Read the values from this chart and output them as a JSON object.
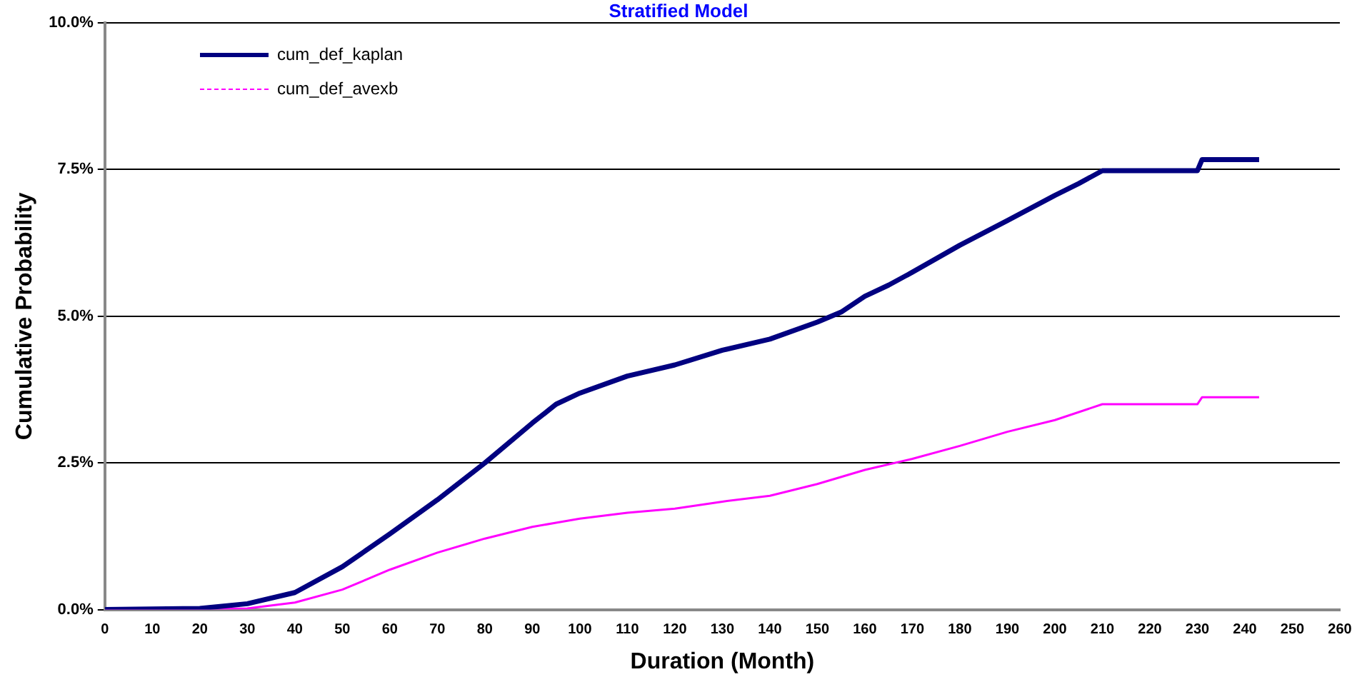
{
  "chart_data": {
    "type": "line",
    "title": "Stratified Model",
    "xlabel": "Duration (Month)",
    "ylabel": "Cumulative Probability",
    "xlim": [
      0,
      260
    ],
    "xticks": [
      0,
      10,
      20,
      30,
      40,
      50,
      60,
      70,
      80,
      90,
      100,
      110,
      120,
      130,
      140,
      150,
      160,
      170,
      180,
      190,
      200,
      210,
      220,
      230,
      240,
      250,
      260
    ],
    "ylim": [
      0,
      10
    ],
    "yticks": [
      {
        "value": 0,
        "label": "0.0%"
      },
      {
        "value": 2.5,
        "label": "2.5%"
      },
      {
        "value": 5,
        "label": "5.0%"
      },
      {
        "value": 7.5,
        "label": "7.5%"
      },
      {
        "value": 10,
        "label": "10.0%"
      }
    ],
    "grid": "y",
    "legend": "top left",
    "marker": "none",
    "series": [
      {
        "name": "cum_def_kaplan",
        "color": "#000080",
        "x": [
          0,
          20,
          30,
          40,
          50,
          60,
          70,
          80,
          90,
          95,
          100,
          110,
          120,
          130,
          140,
          150,
          155,
          160,
          165,
          170,
          180,
          190,
          200,
          205,
          210,
          230,
          231,
          243
        ],
        "values": [
          0,
          0.02,
          0.1,
          0.29,
          0.73,
          1.29,
          1.87,
          2.5,
          3.18,
          3.5,
          3.69,
          3.98,
          4.17,
          4.42,
          4.61,
          4.9,
          5.07,
          5.34,
          5.53,
          5.75,
          6.21,
          6.63,
          7.06,
          7.26,
          7.48,
          7.48,
          7.67,
          7.67
        ]
      },
      {
        "name": "cum_def_avexb",
        "color": "#ff00ff",
        "x": [
          0,
          30,
          40,
          50,
          60,
          70,
          80,
          90,
          95,
          100,
          110,
          120,
          130,
          140,
          150,
          160,
          170,
          180,
          190,
          200,
          210,
          230,
          231,
          243
        ],
        "values": [
          0,
          0.02,
          0.12,
          0.34,
          0.68,
          0.97,
          1.21,
          1.41,
          1.48,
          1.55,
          1.65,
          1.72,
          1.84,
          1.94,
          2.14,
          2.38,
          2.57,
          2.79,
          3.03,
          3.23,
          3.5,
          3.5,
          3.62,
          3.62
        ]
      }
    ]
  }
}
